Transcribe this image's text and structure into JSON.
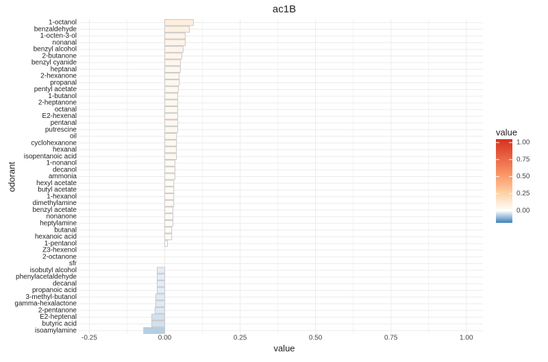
{
  "chart_data": {
    "type": "bar",
    "orientation": "horizontal",
    "title": "ac1B",
    "x_label": "value",
    "y_label": "odorant",
    "categories": [
      "1-octanol",
      "benzaldehyde",
      "1-octen-3-ol",
      "nonanal",
      "benzyl alcohol",
      "2-butanone",
      "benzyl cyanide",
      "heptanal",
      "2-hexanone",
      "propanal",
      "pentyl acetate",
      "1-butanol",
      "2-heptanone",
      "octanal",
      "E2-hexenal",
      "pentanal",
      "putrescine",
      "oil",
      "cyclohexanone",
      "hexanal",
      "isopentanoic acid",
      "1-nonanol",
      "decanol",
      "ammonia",
      "hexyl acetate",
      "butyl acetate",
      "1-hexanol",
      "dimethylamine",
      "benzyl acetate",
      "nonanone",
      "heptylamine",
      "butanal",
      "hexanoic acid",
      "1-pentanol",
      "Z3-hexenol",
      "2-octanone",
      "sfr",
      "isobutyl alcohol",
      "phenylacetaldehyde",
      "decanal",
      "propanoic acid",
      "3-methyl-butanol",
      "gamma-hexalactone",
      "2-pentanone",
      "E2-heptenal",
      "butyric acid",
      "isoamylamine"
    ],
    "values": [
      0.095,
      0.082,
      0.068,
      0.068,
      0.061,
      0.057,
      0.052,
      0.052,
      0.048,
      0.048,
      0.045,
      0.043,
      0.043,
      0.043,
      0.043,
      0.043,
      0.043,
      0.039,
      0.039,
      0.039,
      0.039,
      0.034,
      0.034,
      0.034,
      0.03,
      0.03,
      0.03,
      0.03,
      0.027,
      0.027,
      0.027,
      0.023,
      0.023,
      0.009,
      0,
      0,
      0,
      -0.025,
      -0.025,
      -0.025,
      -0.025,
      -0.03,
      -0.03,
      -0.032,
      -0.043,
      -0.043,
      -0.07
    ],
    "xlim": [
      -0.285,
      1.055
    ],
    "xticks": [
      -0.25,
      {
        "value": 0,
        "label": "0.00"
      },
      0.25,
      {
        "value": 0.5,
        "label": "0.50"
      },
      0.75,
      {
        "value": 1,
        "label": "1.00"
      }
    ],
    "grid": true,
    "bar_outline": "#c8c8c8",
    "legend": {
      "title": "value",
      "position": "right",
      "lim": [
        -0.18,
        1.05
      ],
      "ticks": [
        {
          "value": 0,
          "label": "0.00"
        },
        0.25,
        {
          "value": 0.5,
          "label": "0.50"
        },
        0.75,
        {
          "value": 1,
          "label": "1.00"
        }
      ],
      "scale": [
        {
          "value": -0.18,
          "color": "#3f80b8"
        },
        {
          "value": 0,
          "color": "#ffffff"
        },
        {
          "value": 0.25,
          "color": "#fdd3a8"
        },
        {
          "value": 0.5,
          "color": "#fc9c6c"
        },
        {
          "value": 1.05,
          "color": "#d7301f"
        }
      ]
    }
  }
}
